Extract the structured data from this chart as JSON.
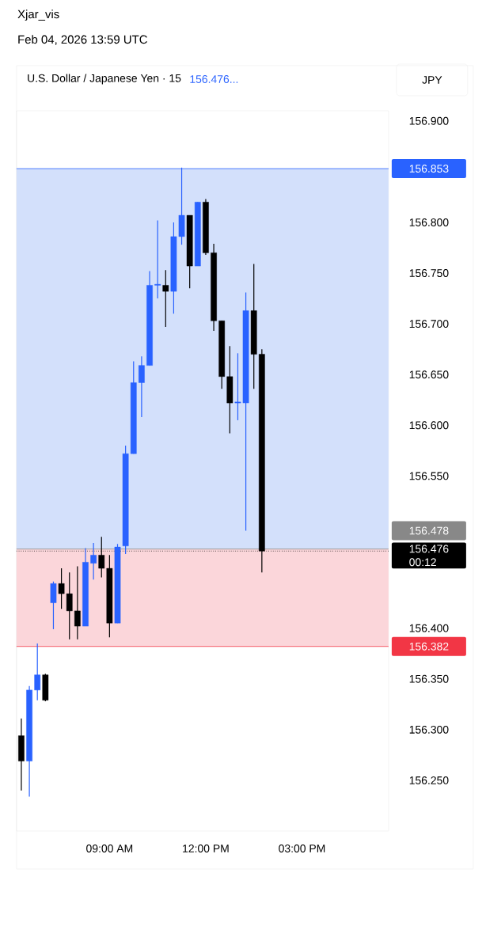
{
  "chart_data": {
    "type": "candlestick",
    "title": "U.S. Dollar / Japanese Yen · 15",
    "subtitle": "156.476...",
    "ylabel": "JPY",
    "annotations": [
      "Xjar_vis",
      "Feb 04, 2026 13:59 UTC",
      "00:12"
    ],
    "x": [
      6.25,
      6.5,
      6.75,
      7,
      7.25,
      7.5,
      7.75,
      8,
      8.25,
      8.5,
      8.75,
      9,
      9.25,
      9.5,
      9.75,
      10,
      10.25,
      10.5,
      10.75,
      11,
      11.25,
      11.5,
      11.75,
      12,
      12.25,
      12.5,
      12.75,
      13,
      13.25,
      13.5,
      13.75
    ],
    "ohlc": [
      [
        156.294,
        156.311,
        156.24,
        156.269
      ],
      [
        156.269,
        156.343,
        156.234,
        156.339
      ],
      [
        156.339,
        156.385,
        156.329,
        156.354
      ],
      [
        156.354,
        156.355,
        156.328,
        156.329
      ],
      [
        156.425,
        156.446,
        156.399,
        156.444
      ],
      [
        156.444,
        156.459,
        156.419,
        156.434
      ],
      [
        156.434,
        156.455,
        156.389,
        156.417
      ],
      [
        156.417,
        156.461,
        156.389,
        156.402
      ],
      [
        156.402,
        156.479,
        156.402,
        156.465
      ],
      [
        156.464,
        156.484,
        156.448,
        156.472
      ],
      [
        156.472,
        156.49,
        156.45,
        156.459
      ],
      [
        156.459,
        156.472,
        156.391,
        156.405
      ],
      [
        156.405,
        156.483,
        156.405,
        156.48
      ],
      [
        156.481,
        156.58,
        156.473,
        156.572
      ],
      [
        156.572,
        156.663,
        156.572,
        156.642
      ],
      [
        156.642,
        156.668,
        156.608,
        156.659
      ],
      [
        156.659,
        156.752,
        156.659,
        156.738
      ],
      [
        156.738,
        156.802,
        156.725,
        156.739
      ],
      [
        156.738,
        156.753,
        156.697,
        156.732
      ],
      [
        156.732,
        156.8,
        156.71,
        156.786
      ],
      [
        156.786,
        156.854,
        156.778,
        156.807
      ],
      [
        156.807,
        156.807,
        156.735,
        156.757
      ],
      [
        156.757,
        156.82,
        156.757,
        156.82
      ],
      [
        156.82,
        156.823,
        156.768,
        156.77
      ],
      [
        156.77,
        156.779,
        156.693,
        156.703
      ],
      [
        156.703,
        156.703,
        156.636,
        156.648
      ],
      [
        156.648,
        156.678,
        156.592,
        156.622
      ],
      [
        156.622,
        156.671,
        156.605,
        156.623
      ],
      [
        156.622,
        156.731,
        156.496,
        156.713
      ],
      [
        156.713,
        156.759,
        156.636,
        156.67
      ],
      [
        156.67,
        156.675,
        156.455,
        156.476
      ]
    ],
    "colors": [
      "#000000",
      "#2962ff",
      "#2962ff",
      "#000000",
      "#2962ff",
      "#000000",
      "#000000",
      "#000000",
      "#2962ff",
      "#2962ff",
      "#000000",
      "#000000",
      "#2962ff",
      "#2962ff",
      "#2962ff",
      "#2962ff",
      "#2962ff",
      "#2962ff",
      "#000000",
      "#2962ff",
      "#2962ff",
      "#000000",
      "#2962ff",
      "#000000",
      "#000000",
      "#000000",
      "#000000",
      "#2962ff",
      "#2962ff",
      "#000000",
      "#000000"
    ],
    "xlim": [
      6.1,
      17.7
    ],
    "ylim": [
      156.2,
      156.91
    ],
    "xticks": [
      {
        "value": 9,
        "label": "09:00 AM"
      },
      {
        "value": 12,
        "label": "12:00 PM"
      },
      {
        "value": 15,
        "label": "03:00 PM"
      }
    ],
    "yticks": [
      {
        "value": 156.25,
        "label": "156.250"
      },
      {
        "value": 156.3,
        "label": "156.300"
      },
      {
        "value": 156.35,
        "label": "156.350"
      },
      {
        "value": 156.4,
        "label": "156.400"
      },
      {
        "value": 156.55,
        "label": "156.550"
      },
      {
        "value": 156.6,
        "label": "156.600"
      },
      {
        "value": 156.65,
        "label": "156.650"
      },
      {
        "value": 156.7,
        "label": "156.700"
      },
      {
        "value": 156.75,
        "label": "156.750"
      },
      {
        "value": 156.8,
        "label": "156.800"
      },
      {
        "value": 156.9,
        "label": "156.900"
      }
    ],
    "bands": [
      {
        "axis": "y",
        "from": 156.478,
        "to": 156.853,
        "color": "#d3e0fb"
      },
      {
        "axis": "y",
        "from": 156.382,
        "to": 156.478,
        "color": "#fbd6da"
      }
    ],
    "ref_lines": [
      {
        "axis": "y",
        "value": 156.853,
        "label": "156.853",
        "color": "#2962ff"
      },
      {
        "axis": "y",
        "value": 156.478,
        "label": "156.478",
        "color": "#888888"
      },
      {
        "axis": "y",
        "value": 156.476,
        "label": "156.476",
        "color": "#000000",
        "line_style": "dotted"
      },
      {
        "axis": "y",
        "value": 156.382,
        "label": "156.382",
        "color": "#f23645"
      }
    ],
    "grid": false
  }
}
